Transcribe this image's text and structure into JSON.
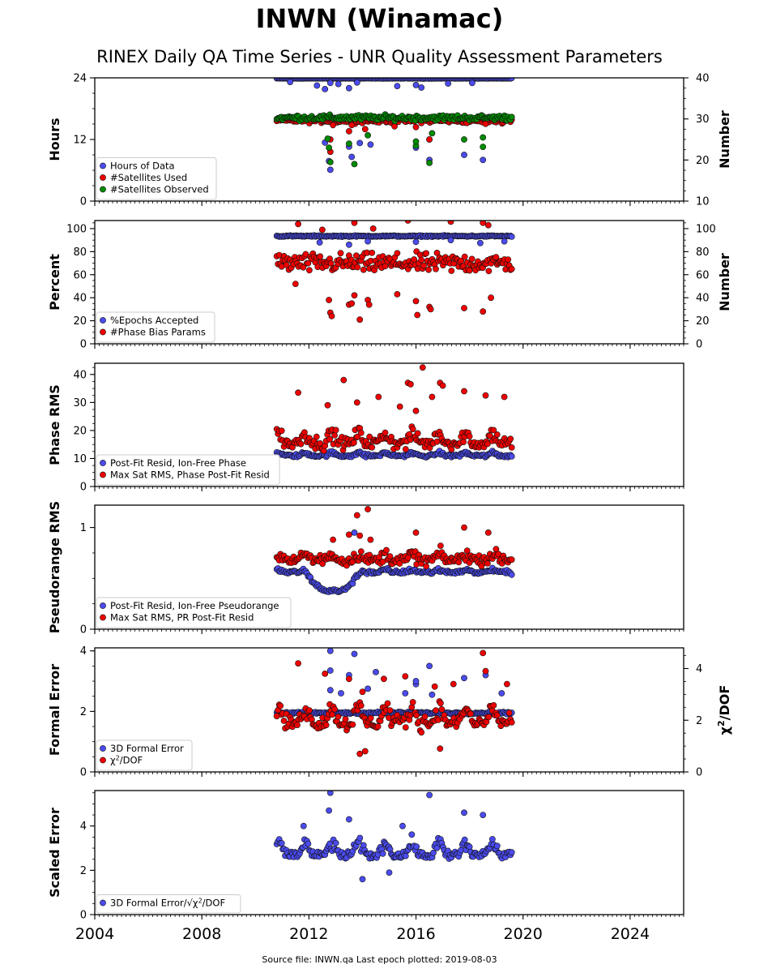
{
  "page": {
    "title": "INWN (Winamac)",
    "subtitle": "RINEX Daily QA Time Series - UNR Quality Assessment Parameters",
    "footer": "Source file: INWN.qa Last epoch plotted: 2019-08-03"
  },
  "colors": {
    "blue": "#4b4bee",
    "red": "#ee0000",
    "green": "#008a00",
    "edge": "#111111"
  },
  "chart_data": [
    {
      "type": "scatter",
      "ylabel": "Hours",
      "y2label": "Number",
      "xlim": [
        2004,
        2026
      ],
      "ylim": [
        0,
        24
      ],
      "y2lim": [
        10,
        40
      ],
      "xticks": [
        2004,
        2008,
        2012,
        2016,
        2020,
        2024
      ],
      "yticks": [
        0,
        12,
        24
      ],
      "y2ticks": [
        10,
        20,
        30,
        40
      ],
      "legend": "lower-left",
      "series": [
        {
          "name": "Hours of Data",
          "color": "blue",
          "axis": "left",
          "typical": 23.9,
          "spread": 0.05,
          "outliers": [
            [
              2011.3,
              23.2
            ],
            [
              2012.3,
              22.5
            ],
            [
              2012.6,
              21.8
            ],
            [
              2012.8,
              23.0
            ],
            [
              2013.1,
              22.8
            ],
            [
              2013.5,
              22.0
            ],
            [
              2013.8,
              23.1
            ],
            [
              2015.3,
              22.4
            ],
            [
              2016.0,
              22.6
            ],
            [
              2016.2,
              22.1
            ],
            [
              2017.2,
              22.9
            ],
            [
              2018.1,
              23.0
            ],
            [
              2012.75,
              7.8
            ],
            [
              2013.6,
              8.6
            ],
            [
              2012.8,
              6.1
            ],
            [
              2013.5,
              10.6
            ],
            [
              2013.9,
              11.3
            ],
            [
              2016.5,
              8.0
            ],
            [
              2016.5,
              12.0
            ],
            [
              2017.8,
              9.0
            ],
            [
              2018.5,
              8.0
            ],
            [
              2016.0,
              10.4
            ],
            [
              2014.3,
              11.0
            ],
            [
              2012.6,
              11.4
            ]
          ]
        },
        {
          "name": "#Satellites Used",
          "color": "red",
          "axis": "right",
          "typical": 29.6,
          "spread": 0.6,
          "outliers": [
            [
              2012.8,
              25.0
            ],
            [
              2012.8,
              22.0
            ],
            [
              2013.5,
              27.0
            ],
            [
              2013.6,
              28.5
            ],
            [
              2016.0,
              28.0
            ],
            [
              2016.5,
              25.0
            ],
            [
              2012.9,
              28.5
            ],
            [
              2014.1,
              27.5
            ],
            [
              2015.2,
              28.2
            ],
            [
              2017.9,
              29.0
            ],
            [
              2018.6,
              28.8
            ]
          ]
        },
        {
          "name": "#Satellites Observed",
          "color": "green",
          "axis": "right",
          "typical": 30.3,
          "spread": 0.7,
          "outliers": [
            [
              2012.8,
              19.5
            ],
            [
              2012.75,
              23.0
            ],
            [
              2013.7,
              19.0
            ],
            [
              2013.5,
              24.0
            ],
            [
              2016.0,
              23.5
            ],
            [
              2016.5,
              19.3
            ],
            [
              2016.0,
              24.5
            ],
            [
              2017.8,
              25.0
            ],
            [
              2018.5,
              25.5
            ],
            [
              2018.5,
              23.2
            ],
            [
              2012.7,
              25.2
            ],
            [
              2014.2,
              26.0
            ],
            [
              2016.6,
              26.5
            ]
          ]
        }
      ]
    },
    {
      "type": "scatter",
      "ylabel": "Percent",
      "y2label": "Number",
      "xlim": [
        2004,
        2026
      ],
      "ylim": [
        0,
        107
      ],
      "y2lim": [
        0,
        107
      ],
      "xticks": [
        2004,
        2008,
        2012,
        2016,
        2020,
        2024
      ],
      "yticks": [
        0,
        20,
        40,
        60,
        80,
        100
      ],
      "y2ticks": [
        0,
        20,
        40,
        60,
        80,
        100
      ],
      "legend": "lower-left",
      "series": [
        {
          "name": "%Epochs Accepted",
          "color": "blue",
          "axis": "left",
          "typical": 93.5,
          "spread": 0.6,
          "outliers": [
            [
              2012.4,
              88.0
            ],
            [
              2013.5,
              86.0
            ],
            [
              2014.2,
              89.0
            ],
            [
              2016.0,
              88.5
            ],
            [
              2017.3,
              90.0
            ],
            [
              2018.4,
              87.5
            ],
            [
              2019.3,
              89.0
            ]
          ]
        },
        {
          "name": "#Phase Bias Params",
          "color": "red",
          "axis": "right",
          "typical": 70,
          "spread": 9,
          "outliers": [
            [
              2011.5,
              52
            ],
            [
              2012.75,
              38
            ],
            [
              2012.8,
              27
            ],
            [
              2012.85,
              24
            ],
            [
              2013.5,
              34
            ],
            [
              2013.6,
              35
            ],
            [
              2013.7,
              42
            ],
            [
              2013.9,
              21
            ],
            [
              2014.2,
              38
            ],
            [
              2014.25,
              34
            ],
            [
              2015.3,
              43
            ],
            [
              2016.0,
              37
            ],
            [
              2016.05,
              25
            ],
            [
              2016.5,
              32
            ],
            [
              2016.55,
              30
            ],
            [
              2017.8,
              31
            ],
            [
              2018.5,
              28
            ],
            [
              2018.8,
              40
            ],
            [
              2011.6,
              104
            ],
            [
              2013.7,
              105
            ],
            [
              2015.7,
              107
            ],
            [
              2017.3,
              106
            ],
            [
              2018.5,
              105
            ],
            [
              2018.7,
              103
            ],
            [
              2014.4,
              100
            ],
            [
              2012.5,
              99
            ]
          ]
        }
      ]
    },
    {
      "type": "scatter",
      "ylabel": "Phase RMS",
      "xlim": [
        2004,
        2026
      ],
      "ylim": [
        0,
        44
      ],
      "xticks": [
        2004,
        2008,
        2012,
        2016,
        2020,
        2024
      ],
      "yticks": [
        0,
        10,
        20,
        30,
        40
      ],
      "legend": "lower-left",
      "series": [
        {
          "name": "Post-Fit Resid, Ion-Free Phase",
          "color": "blue",
          "axis": "left",
          "typical": 11.0,
          "spread": 0.6,
          "seasonal": 0.8,
          "outliers": []
        },
        {
          "name": "Max Sat RMS, Phase Post-Fit Resid",
          "color": "red",
          "axis": "left",
          "typical": 15.5,
          "spread": 2.5,
          "seasonal": 3.0,
          "outliers": [
            [
              2011.6,
              33.5
            ],
            [
              2012.7,
              29.0
            ],
            [
              2013.3,
              38.0
            ],
            [
              2013.8,
              30.0
            ],
            [
              2014.6,
              32.0
            ],
            [
              2015.4,
              28.5
            ],
            [
              2015.7,
              37.0
            ],
            [
              2016.0,
              27.0
            ],
            [
              2016.25,
              42.5
            ],
            [
              2016.6,
              32.0
            ],
            [
              2016.9,
              37.0
            ],
            [
              2017.0,
              36.0
            ],
            [
              2017.8,
              34.0
            ],
            [
              2018.6,
              32.5
            ],
            [
              2019.3,
              32.0
            ],
            [
              2015.8,
              36.5
            ]
          ]
        }
      ]
    },
    {
      "type": "scatter",
      "ylabel": "Pseudorange RMS",
      "xlim": [
        2004,
        2026
      ],
      "ylim": [
        0,
        1.22
      ],
      "xticks": [
        2004,
        2008,
        2012,
        2016,
        2020,
        2024
      ],
      "yticks": [
        0,
        1
      ],
      "legend": "lower-left",
      "series": [
        {
          "name": "Post-Fit Resid, Ion-Free Pseudorange",
          "color": "blue",
          "axis": "left",
          "typical": 0.56,
          "spread": 0.02,
          "seasonal": 0.02,
          "dip": true,
          "outliers": [
            [
              2013.7,
              0.95
            ]
          ]
        },
        {
          "name": "Max Sat RMS, PR Post-Fit Resid",
          "color": "red",
          "axis": "left",
          "typical": 0.68,
          "spread": 0.06,
          "seasonal": 0.05,
          "outliers": [
            [
              2013.5,
              0.93
            ],
            [
              2013.8,
              1.12
            ],
            [
              2014.2,
              1.18
            ],
            [
              2013.9,
              0.92
            ],
            [
              2014.3,
              0.88
            ],
            [
              2016.0,
              0.95
            ],
            [
              2017.8,
              1.0
            ],
            [
              2018.7,
              0.95
            ],
            [
              2012.9,
              0.88
            ]
          ]
        }
      ]
    },
    {
      "type": "scatter",
      "ylabel": "Formal Error",
      "y2label": "χ2/DOF",
      "xlim": [
        2004,
        2026
      ],
      "ylim": [
        0,
        4.1
      ],
      "y2lim": [
        0,
        4.8
      ],
      "xticks": [
        2004,
        2008,
        2012,
        2016,
        2020,
        2024
      ],
      "yticks": [
        0,
        2,
        4
      ],
      "y2ticks": [
        0,
        2,
        4
      ],
      "legend": "lower-left",
      "series": [
        {
          "name": "3D Formal Error",
          "color": "blue",
          "axis": "left",
          "typical": 1.95,
          "spread": 0.04,
          "outliers": [
            [
              2012.8,
              4.0
            ],
            [
              2013.7,
              3.9
            ],
            [
              2012.8,
              3.35
            ],
            [
              2013.5,
              3.2
            ],
            [
              2014.5,
              3.3
            ],
            [
              2016.0,
              2.9
            ],
            [
              2016.5,
              3.5
            ],
            [
              2016.0,
              3.0
            ],
            [
              2017.8,
              3.1
            ],
            [
              2018.6,
              3.2
            ],
            [
              2019.2,
              2.6
            ],
            [
              2012.8,
              2.7
            ],
            [
              2013.2,
              2.6
            ],
            [
              2014.2,
              2.75
            ],
            [
              2015.6,
              2.6
            ],
            [
              2016.6,
              2.55
            ]
          ]
        },
        {
          "name": "χ2/DOF",
          "color": "red",
          "axis": "right",
          "typical": 1.9,
          "spread": 0.3,
          "seasonal": 0.5,
          "outliers": [
            [
              2011.6,
              4.2
            ],
            [
              2012.6,
              3.8
            ],
            [
              2013.5,
              3.6
            ],
            [
              2014.0,
              3.1
            ],
            [
              2014.8,
              3.6
            ],
            [
              2015.6,
              3.7
            ],
            [
              2016.7,
              3.3
            ],
            [
              2017.4,
              3.4
            ],
            [
              2018.5,
              4.6
            ],
            [
              2018.6,
              3.9
            ],
            [
              2013.9,
              0.7
            ],
            [
              2014.1,
              0.8
            ],
            [
              2016.9,
              0.9
            ],
            [
              2019.4,
              3.4
            ]
          ]
        }
      ]
    },
    {
      "type": "scatter",
      "ylabel": "Scaled Error",
      "xlim": [
        2004,
        2026
      ],
      "ylim": [
        0,
        5.6
      ],
      "xticks": [
        2004,
        2008,
        2012,
        2016,
        2020,
        2024
      ],
      "yticks": [
        0,
        2,
        4
      ],
      "xticklabels": [
        "2004",
        "2008",
        "2012",
        "2016",
        "2020",
        "2024"
      ],
      "legend": "lower-left",
      "series": [
        {
          "name": "3D Formal Error/√χ2/DOF",
          "color": "blue",
          "axis": "left",
          "typical": 2.7,
          "spread": 0.22,
          "seasonal": 0.45,
          "outliers": [
            [
              2012.8,
              5.5
            ],
            [
              2012.75,
              4.7
            ],
            [
              2016.5,
              5.4
            ],
            [
              2013.5,
              4.3
            ],
            [
              2017.8,
              4.6
            ],
            [
              2018.5,
              4.5
            ],
            [
              2014.0,
              1.6
            ],
            [
              2015.0,
              1.9
            ],
            [
              2011.8,
              4.0
            ],
            [
              2015.5,
              4.0
            ]
          ]
        }
      ]
    }
  ]
}
